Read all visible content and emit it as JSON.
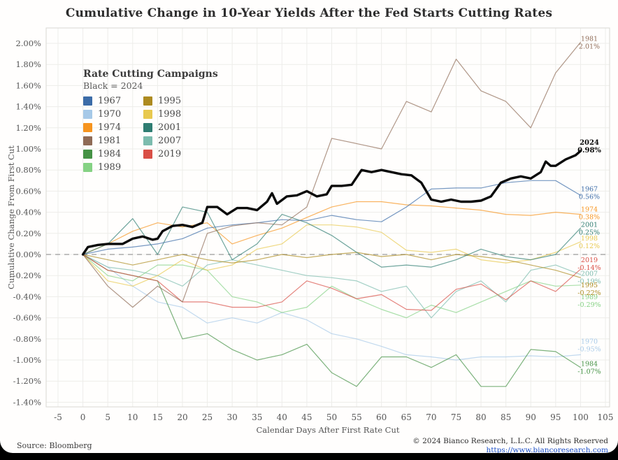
{
  "footer": {
    "source": "Source: Bloomberg",
    "copyright": "© 2024 Bianco Research, L.L.C. All Rights Reserved",
    "url": "https://www.biancoresearch.com"
  },
  "legend": {
    "title": "Rate Cutting Campaigns",
    "subtitle": "Black = 2024",
    "column1": [
      {
        "label": "1967",
        "color": "#3c6ca8"
      },
      {
        "label": "1970",
        "color": "#a6c9e8"
      },
      {
        "label": "1974",
        "color": "#f6941e"
      },
      {
        "label": "1981",
        "color": "#8f6b56"
      },
      {
        "label": "1984",
        "color": "#459245"
      },
      {
        "label": "1989",
        "color": "#85d284"
      }
    ],
    "column2": [
      {
        "label": "1995",
        "color": "#ad8b20"
      },
      {
        "label": "1998",
        "color": "#e8c94f"
      },
      {
        "label": "2001",
        "color": "#2f7d72"
      },
      {
        "label": "2007",
        "color": "#7cbcae"
      },
      {
        "label": "2019",
        "color": "#d94f46"
      }
    ]
  },
  "chart_data": {
    "type": "line",
    "title": "Cumulative Change in 10-Year Yields After the Fed Starts Cutting Rates",
    "xlabel": "Calendar Days After First Rate Cut",
    "ylabel": "Cumulative Change From First Cut",
    "xlim": [
      -5,
      105
    ],
    "ylim": [
      -1.4,
      2.0
    ],
    "x_ticks": [
      -5,
      0,
      5,
      10,
      15,
      20,
      25,
      30,
      35,
      40,
      45,
      50,
      55,
      60,
      65,
      70,
      75,
      80,
      85,
      90,
      95,
      100,
      105
    ],
    "y_ticks": [
      2.0,
      1.8,
      1.6,
      1.4,
      1.2,
      1.0,
      0.8,
      0.6,
      0.4,
      0.2,
      0.0,
      -0.2,
      -0.4,
      -0.6,
      -0.8,
      -1.0,
      -1.2,
      -1.4
    ],
    "grid": true,
    "zero_line": "dashed",
    "legend_position": "upper-left-inside",
    "series": [
      {
        "name": "1970",
        "color": "#a6c9e8",
        "end_value": -0.95,
        "end_label": "-0.95%",
        "label_dy": -14,
        "x": [
          0,
          5,
          10,
          15,
          20,
          25,
          30,
          35,
          40,
          45,
          50,
          55,
          60,
          65,
          70,
          75,
          80,
          85,
          90,
          95,
          100
        ],
        "values": [
          0,
          -0.12,
          -0.3,
          -0.45,
          -0.5,
          -0.65,
          -0.6,
          -0.65,
          -0.55,
          -0.62,
          -0.75,
          -0.8,
          -0.87,
          -0.95,
          -0.97,
          -1.0,
          -0.97,
          -0.97,
          -0.96,
          -0.97,
          -0.95
        ]
      },
      {
        "name": "2007",
        "color": "#7cbcae",
        "end_value": -0.19,
        "end_label": "-0.19%",
        "label_dy": 4,
        "x": [
          0,
          5,
          10,
          15,
          20,
          25,
          30,
          35,
          40,
          45,
          50,
          55,
          60,
          65,
          70,
          75,
          80,
          85,
          90,
          95,
          100
        ],
        "values": [
          0,
          -0.12,
          -0.15,
          -0.2,
          -0.3,
          -0.1,
          -0.05,
          -0.1,
          -0.15,
          -0.2,
          -0.22,
          -0.25,
          -0.35,
          -0.3,
          -0.6,
          -0.35,
          -0.25,
          -0.45,
          -0.15,
          -0.1,
          -0.19
        ]
      },
      {
        "name": "1989",
        "color": "#85d284",
        "end_value": -0.29,
        "end_label": "-0.29%",
        "label_dy": 22,
        "x": [
          0,
          5,
          10,
          15,
          20,
          25,
          30,
          35,
          40,
          45,
          50,
          55,
          60,
          65,
          70,
          75,
          80,
          85,
          90,
          95,
          100
        ],
        "values": [
          0,
          -0.2,
          -0.25,
          -0.1,
          -0.1,
          -0.15,
          -0.4,
          -0.45,
          -0.55,
          -0.5,
          -0.3,
          -0.42,
          -0.52,
          -0.6,
          -0.48,
          -0.55,
          -0.45,
          -0.35,
          -0.25,
          -0.3,
          -0.29
        ]
      },
      {
        "name": "1998",
        "color": "#e8c94f",
        "end_value": 0.12,
        "end_label": "0.12%",
        "label_dy": 0,
        "x": [
          0,
          5,
          10,
          15,
          20,
          25,
          30,
          35,
          40,
          45,
          50,
          55,
          60,
          65,
          70,
          75,
          80,
          85,
          90,
          95,
          100
        ],
        "values": [
          0,
          -0.25,
          -0.3,
          -0.2,
          -0.05,
          -0.15,
          -0.1,
          0.05,
          0.1,
          0.28,
          0.28,
          0.26,
          0.21,
          0.04,
          0.02,
          0.05,
          -0.05,
          -0.08,
          -0.05,
          0.02,
          0.12
        ]
      },
      {
        "name": "1995",
        "color": "#ad8b20",
        "end_value": -0.22,
        "end_label": "-0.22%",
        "label_dy": 16,
        "x": [
          0,
          5,
          10,
          15,
          20,
          25,
          30,
          35,
          40,
          45,
          50,
          55,
          60,
          65,
          70,
          75,
          80,
          85,
          90,
          95,
          100
        ],
        "values": [
          0,
          -0.05,
          -0.1,
          -0.05,
          0.0,
          -0.05,
          -0.08,
          -0.05,
          0.0,
          -0.03,
          0.0,
          0.02,
          -0.02,
          0.0,
          -0.05,
          0.0,
          -0.02,
          -0.05,
          -0.1,
          -0.15,
          -0.22
        ]
      },
      {
        "name": "1974",
        "color": "#f6941e",
        "end_value": 0.38,
        "end_label": "0.38%",
        "label_dy": -2,
        "x": [
          0,
          5,
          10,
          15,
          20,
          25,
          30,
          35,
          40,
          45,
          50,
          55,
          60,
          65,
          70,
          75,
          80,
          85,
          90,
          95,
          100
        ],
        "values": [
          0,
          0.1,
          0.22,
          0.3,
          0.26,
          0.3,
          0.1,
          0.18,
          0.25,
          0.35,
          0.45,
          0.5,
          0.5,
          0.47,
          0.46,
          0.44,
          0.42,
          0.38,
          0.37,
          0.4,
          0.38
        ]
      },
      {
        "name": "1984",
        "color": "#459245",
        "end_value": -1.07,
        "end_label": "-1.07%",
        "label_dy": 0,
        "x": [
          0,
          5,
          10,
          15,
          20,
          25,
          30,
          35,
          40,
          45,
          50,
          55,
          60,
          65,
          70,
          75,
          80,
          85,
          90,
          95,
          100
        ],
        "values": [
          0,
          -0.15,
          -0.2,
          -0.25,
          -0.8,
          -0.75,
          -0.9,
          -1.0,
          -0.95,
          -0.85,
          -1.12,
          -1.25,
          -0.97,
          -0.97,
          -1.07,
          -0.95,
          -1.25,
          -1.25,
          -0.9,
          -0.92,
          -1.07
        ]
      },
      {
        "name": "2019",
        "color": "#d94f46",
        "end_value": -0.14,
        "end_label": "-0.14%",
        "label_dy": -8,
        "x": [
          0,
          5,
          10,
          15,
          20,
          25,
          30,
          35,
          40,
          45,
          50,
          55,
          60,
          65,
          70,
          75,
          80,
          85,
          90,
          95,
          100
        ],
        "values": [
          0,
          -0.15,
          -0.2,
          -0.25,
          -0.45,
          -0.45,
          -0.5,
          -0.5,
          -0.45,
          -0.25,
          -0.32,
          -0.42,
          -0.38,
          -0.52,
          -0.53,
          -0.33,
          -0.28,
          -0.43,
          -0.25,
          -0.35,
          -0.14
        ]
      },
      {
        "name": "2001",
        "color": "#2f7d72",
        "end_value": 0.25,
        "end_label": "0.25%",
        "label_dy": 0,
        "x": [
          0,
          5,
          10,
          15,
          20,
          25,
          30,
          35,
          40,
          45,
          50,
          55,
          60,
          65,
          70,
          75,
          80,
          85,
          90,
          95,
          100
        ],
        "values": [
          0,
          0.1,
          0.34,
          0.0,
          0.45,
          0.4,
          -0.05,
          0.1,
          0.38,
          0.3,
          0.18,
          0.02,
          -0.12,
          -0.1,
          -0.12,
          -0.05,
          0.05,
          -0.02,
          -0.05,
          0.0,
          0.25
        ]
      },
      {
        "name": "1967",
        "color": "#3c6ca8",
        "end_value": 0.56,
        "end_label": "0.56%",
        "label_dy": -4,
        "x": [
          0,
          5,
          10,
          15,
          20,
          25,
          30,
          35,
          40,
          45,
          50,
          55,
          60,
          65,
          70,
          75,
          80,
          85,
          90,
          95,
          100
        ],
        "values": [
          0,
          0.05,
          0.07,
          0.1,
          0.15,
          0.25,
          0.28,
          0.3,
          0.33,
          0.32,
          0.37,
          0.33,
          0.31,
          0.45,
          0.62,
          0.63,
          0.63,
          0.68,
          0.7,
          0.7,
          0.56
        ]
      },
      {
        "name": "1981",
        "color": "#8f6b56",
        "end_value": 2.01,
        "end_label": "2.01%",
        "label_dy": 0,
        "x": [
          0,
          5,
          10,
          15,
          20,
          25,
          30,
          35,
          40,
          45,
          50,
          55,
          60,
          65,
          70,
          75,
          80,
          85,
          90,
          95,
          100
        ],
        "values": [
          0,
          -0.3,
          -0.5,
          -0.3,
          -0.45,
          0.2,
          0.27,
          0.3,
          0.28,
          0.45,
          1.1,
          1.05,
          1.0,
          1.45,
          1.35,
          1.85,
          1.55,
          1.45,
          1.2,
          1.72,
          2.01
        ]
      },
      {
        "name": "2024",
        "color": "#0a0a0a",
        "end_value": 0.98,
        "end_label": "0.98%",
        "label_dy": -7,
        "emphasis": true,
        "x": [
          0,
          1,
          3,
          5,
          8,
          10,
          12,
          14,
          15,
          16,
          18,
          20,
          22,
          24,
          25,
          27,
          29,
          31,
          33,
          35,
          37,
          38,
          39,
          41,
          43,
          45,
          47,
          49,
          50,
          52,
          54,
          56,
          58,
          60,
          62,
          64,
          66,
          68,
          70,
          72,
          74,
          76,
          78,
          80,
          82,
          84,
          86,
          88,
          90,
          92,
          93,
          94,
          95,
          97,
          99,
          100
        ],
        "values": [
          0,
          0.07,
          0.09,
          0.1,
          0.1,
          0.15,
          0.17,
          0.14,
          0.15,
          0.22,
          0.27,
          0.28,
          0.26,
          0.3,
          0.45,
          0.45,
          0.38,
          0.44,
          0.44,
          0.42,
          0.5,
          0.58,
          0.48,
          0.55,
          0.56,
          0.6,
          0.55,
          0.57,
          0.65,
          0.65,
          0.66,
          0.8,
          0.78,
          0.8,
          0.78,
          0.76,
          0.75,
          0.68,
          0.52,
          0.5,
          0.52,
          0.5,
          0.5,
          0.51,
          0.55,
          0.68,
          0.72,
          0.74,
          0.72,
          0.78,
          0.88,
          0.84,
          0.84,
          0.9,
          0.94,
          0.98
        ]
      }
    ]
  }
}
